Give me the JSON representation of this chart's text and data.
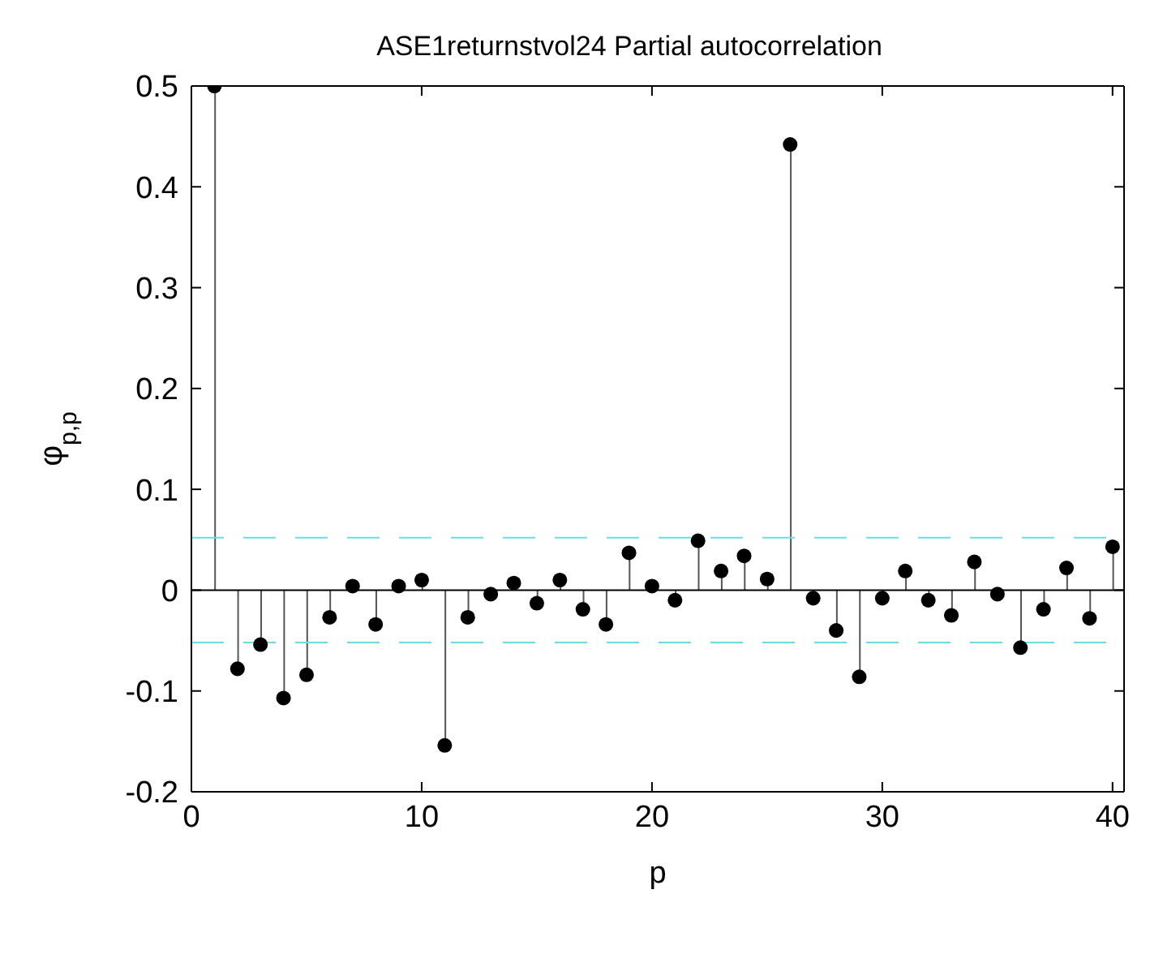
{
  "chart_data": {
    "type": "lollipop",
    "title": "ASE1returnstvol24 Partial autocorrelation",
    "xlabel": "p",
    "ylabel": "φ$_{p,p}$",
    "x": [
      1,
      2,
      3,
      4,
      5,
      6,
      7,
      8,
      9,
      10,
      11,
      12,
      13,
      14,
      15,
      16,
      17,
      18,
      19,
      20,
      21,
      22,
      23,
      24,
      25,
      26,
      27,
      28,
      29,
      30,
      31,
      32,
      33,
      34,
      35,
      36,
      37,
      38,
      39,
      40
    ],
    "values": [
      0.5,
      -0.078,
      -0.054,
      -0.107,
      -0.084,
      -0.027,
      0.004,
      -0.034,
      0.004,
      0.01,
      -0.154,
      -0.027,
      -0.004,
      0.007,
      -0.013,
      0.01,
      -0.019,
      -0.034,
      0.037,
      0.004,
      -0.01,
      0.049,
      0.019,
      0.034,
      0.011,
      0.442,
      -0.008,
      -0.04,
      -0.086,
      -0.008,
      0.019,
      -0.01,
      -0.025,
      0.028,
      -0.004,
      -0.057,
      -0.019,
      0.022,
      -0.028,
      0.043
    ],
    "color": "#000000",
    "marker": "circle",
    "xlim": [
      0,
      40.5
    ],
    "xticks": [
      0,
      10,
      20,
      30,
      40
    ],
    "ylim": [
      -0.2,
      0.5
    ],
    "yticks": [
      -0.2,
      -0.1,
      0,
      0.1,
      0.2,
      0.3,
      0.4,
      0.5
    ],
    "ref_lines": [
      {
        "axis": "y",
        "value": 0.052,
        "color": "#66e0e0",
        "line_style": "dashed"
      },
      {
        "axis": "y",
        "value": -0.052,
        "color": "#66e0e0",
        "line_style": "dashed"
      },
      {
        "axis": "y",
        "value": 0,
        "color": "#000000",
        "line_style": "solid"
      }
    ],
    "grid": false,
    "legend": false
  }
}
